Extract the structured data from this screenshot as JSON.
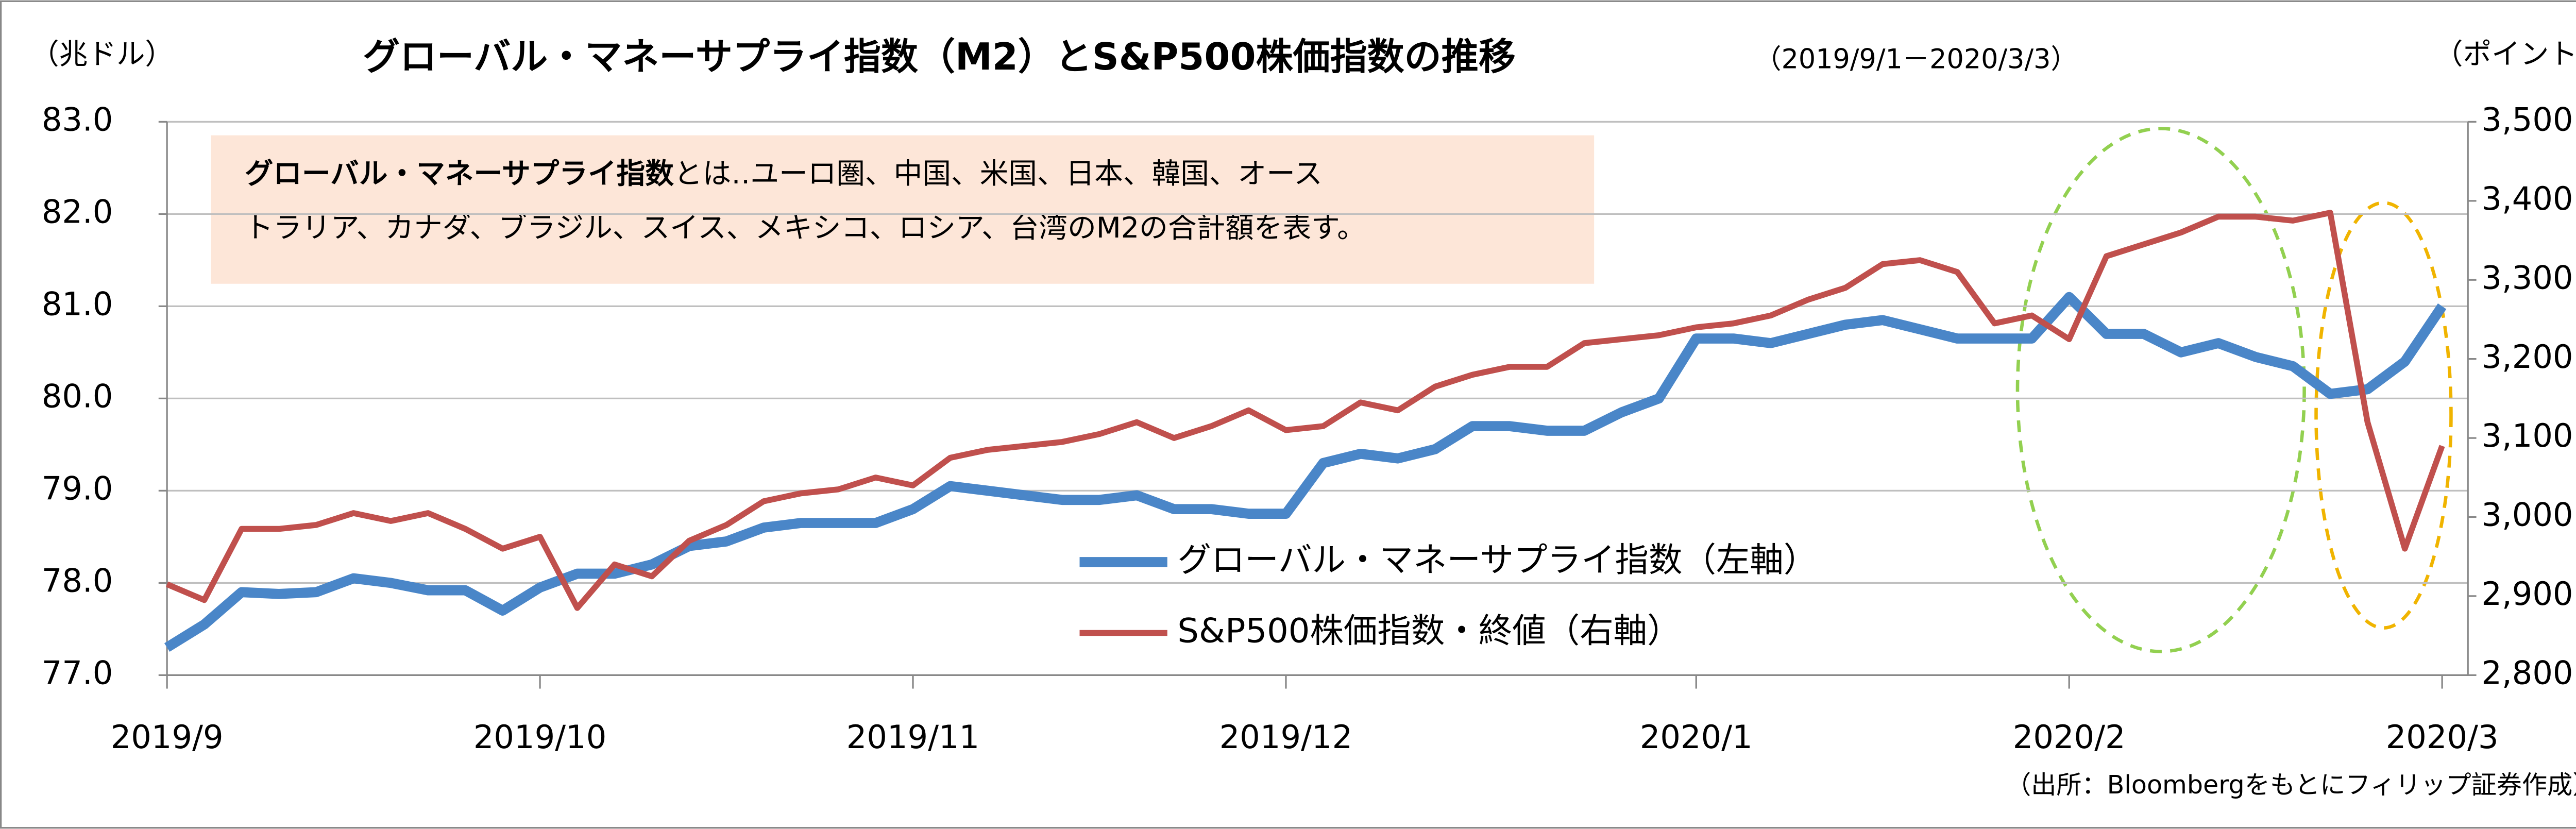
{
  "chart_data": {
    "type": "line",
    "title": "グローバル・マネーサプライ指数（M2）とS&P500株価指数の推移",
    "subtitle": "（2019/9/1－2020/3/3）",
    "y_label": "（兆ドル）",
    "y2_label": "（ポイント）",
    "annotation": {
      "bold": "グローバル・マネーサプライ指数",
      "lines": [
        "とは‥ユーロ圏、中国、米国、日本、韓国、オース",
        "トラリア、カナダ、ブラジル、スイス、メキシコ、ロシア、台湾のM2の合計額を表す。"
      ]
    },
    "source": "（出所：Bloombergをもとにフィリップ証券作成）",
    "categories": [
      "2019/9",
      null,
      null,
      null,
      null,
      null,
      null,
      null,
      null,
      null,
      "2019/10",
      null,
      null,
      null,
      null,
      null,
      null,
      null,
      null,
      null,
      "2019/11",
      null,
      null,
      null,
      null,
      null,
      null,
      null,
      null,
      null,
      "2019/12",
      null,
      null,
      null,
      null,
      null,
      null,
      null,
      null,
      null,
      null,
      "2020/1",
      null,
      null,
      null,
      null,
      null,
      null,
      null,
      null,
      null,
      "2020/2",
      null,
      null,
      null,
      null,
      null,
      null,
      null,
      null,
      null,
      "2020/3"
    ],
    "series": [
      {
        "name": "グローバル・マネーサプライ指数（左軸）",
        "color": "#4a86c8",
        "axis": "y",
        "values": [
          77.3,
          77.55,
          77.9,
          77.88,
          77.9,
          78.05,
          78.0,
          77.92,
          77.92,
          77.7,
          77.95,
          78.1,
          78.1,
          78.2,
          78.4,
          78.45,
          78.6,
          78.65,
          78.65,
          78.65,
          78.8,
          79.05,
          79.0,
          78.95,
          78.9,
          78.9,
          78.95,
          78.8,
          78.8,
          78.75,
          78.75,
          79.3,
          79.4,
          79.35,
          79.45,
          79.7,
          79.7,
          79.65,
          79.65,
          79.85,
          80.0,
          80.65,
          80.65,
          80.6,
          80.7,
          80.8,
          80.85,
          80.75,
          80.65,
          80.65,
          80.65,
          81.1,
          80.7,
          80.7,
          80.5,
          80.6,
          80.45,
          80.35,
          80.05,
          80.1,
          80.4,
          81.0
        ]
      },
      {
        "name": "S&P500株価指数・終値（右軸）",
        "color": "#c0504d",
        "axis": "y2",
        "values": [
          2915,
          2895,
          2985,
          2985,
          2990,
          3005,
          2995,
          3005,
          2985,
          2960,
          2975,
          2885,
          2940,
          2925,
          2970,
          2990,
          3020,
          3030,
          3035,
          3050,
          3040,
          3075,
          3085,
          3090,
          3095,
          3105,
          3120,
          3100,
          3115,
          3135,
          3110,
          3115,
          3145,
          3135,
          3165,
          3180,
          3190,
          3190,
          3220,
          3225,
          3230,
          3240,
          3245,
          3255,
          3275,
          3290,
          3320,
          3325,
          3310,
          3245,
          3255,
          3225,
          3330,
          3345,
          3360,
          3380,
          3380,
          3375,
          3385,
          3120,
          2960,
          3090
        ]
      }
    ],
    "ylim": [
      77,
      83
    ],
    "yticks": [
      {
        "value": 77,
        "label": "77.0"
      },
      {
        "value": 78,
        "label": "78.0"
      },
      {
        "value": 79,
        "label": "79.0"
      },
      {
        "value": 80,
        "label": "80.0"
      },
      {
        "value": 81,
        "label": "81.0"
      },
      {
        "value": 82,
        "label": "82.0"
      },
      {
        "value": 83,
        "label": "83.0"
      }
    ],
    "y2lim": [
      2800,
      3500
    ],
    "y2ticks": [
      {
        "value": 2800,
        "label": "2,800"
      },
      {
        "value": 2900,
        "label": "2,900"
      },
      {
        "value": 3000,
        "label": "3,000"
      },
      {
        "value": 3100,
        "label": "3,100"
      },
      {
        "value": 3200,
        "label": "3,200"
      },
      {
        "value": 3300,
        "label": "3,300"
      },
      {
        "value": 3400,
        "label": "3,400"
      },
      {
        "value": 3500,
        "label": "3,500"
      }
    ],
    "grid": true
  }
}
